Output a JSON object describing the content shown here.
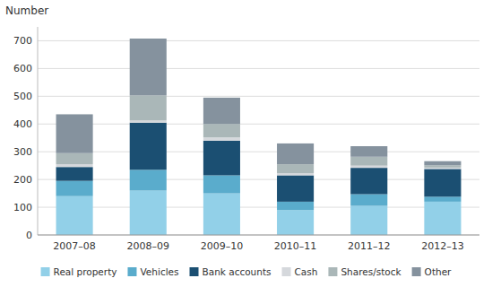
{
  "chart_data": {
    "type": "bar",
    "stacked": true,
    "ylabel": "Number",
    "categories": [
      "2007–08",
      "2008–09",
      "2009–10",
      "2010–11",
      "2011–12",
      "2012–13"
    ],
    "series": [
      {
        "name": "Real property",
        "color": "#92d0e8",
        "values": [
          140,
          160,
          150,
          90,
          105,
          120
        ]
      },
      {
        "name": "Vehicles",
        "color": "#5aaccc",
        "values": [
          55,
          75,
          65,
          30,
          42,
          18
        ]
      },
      {
        "name": "Bank accounts",
        "color": "#1b4f72",
        "values": [
          50,
          170,
          125,
          95,
          95,
          100
        ]
      },
      {
        "name": "Cash",
        "color": "#d5d8dc",
        "values": [
          10,
          8,
          12,
          8,
          8,
          5
        ]
      },
      {
        "name": "Shares/stock",
        "color": "#aab7b8",
        "values": [
          40,
          90,
          48,
          32,
          32,
          8
        ]
      },
      {
        "name": "Other",
        "color": "#85929e",
        "values": [
          140,
          205,
          95,
          75,
          38,
          15
        ]
      }
    ],
    "ylim": [
      0,
      750
    ],
    "yticks": [
      0,
      100,
      200,
      300,
      400,
      500,
      600,
      700
    ],
    "grid": true,
    "legend": "bottom"
  }
}
